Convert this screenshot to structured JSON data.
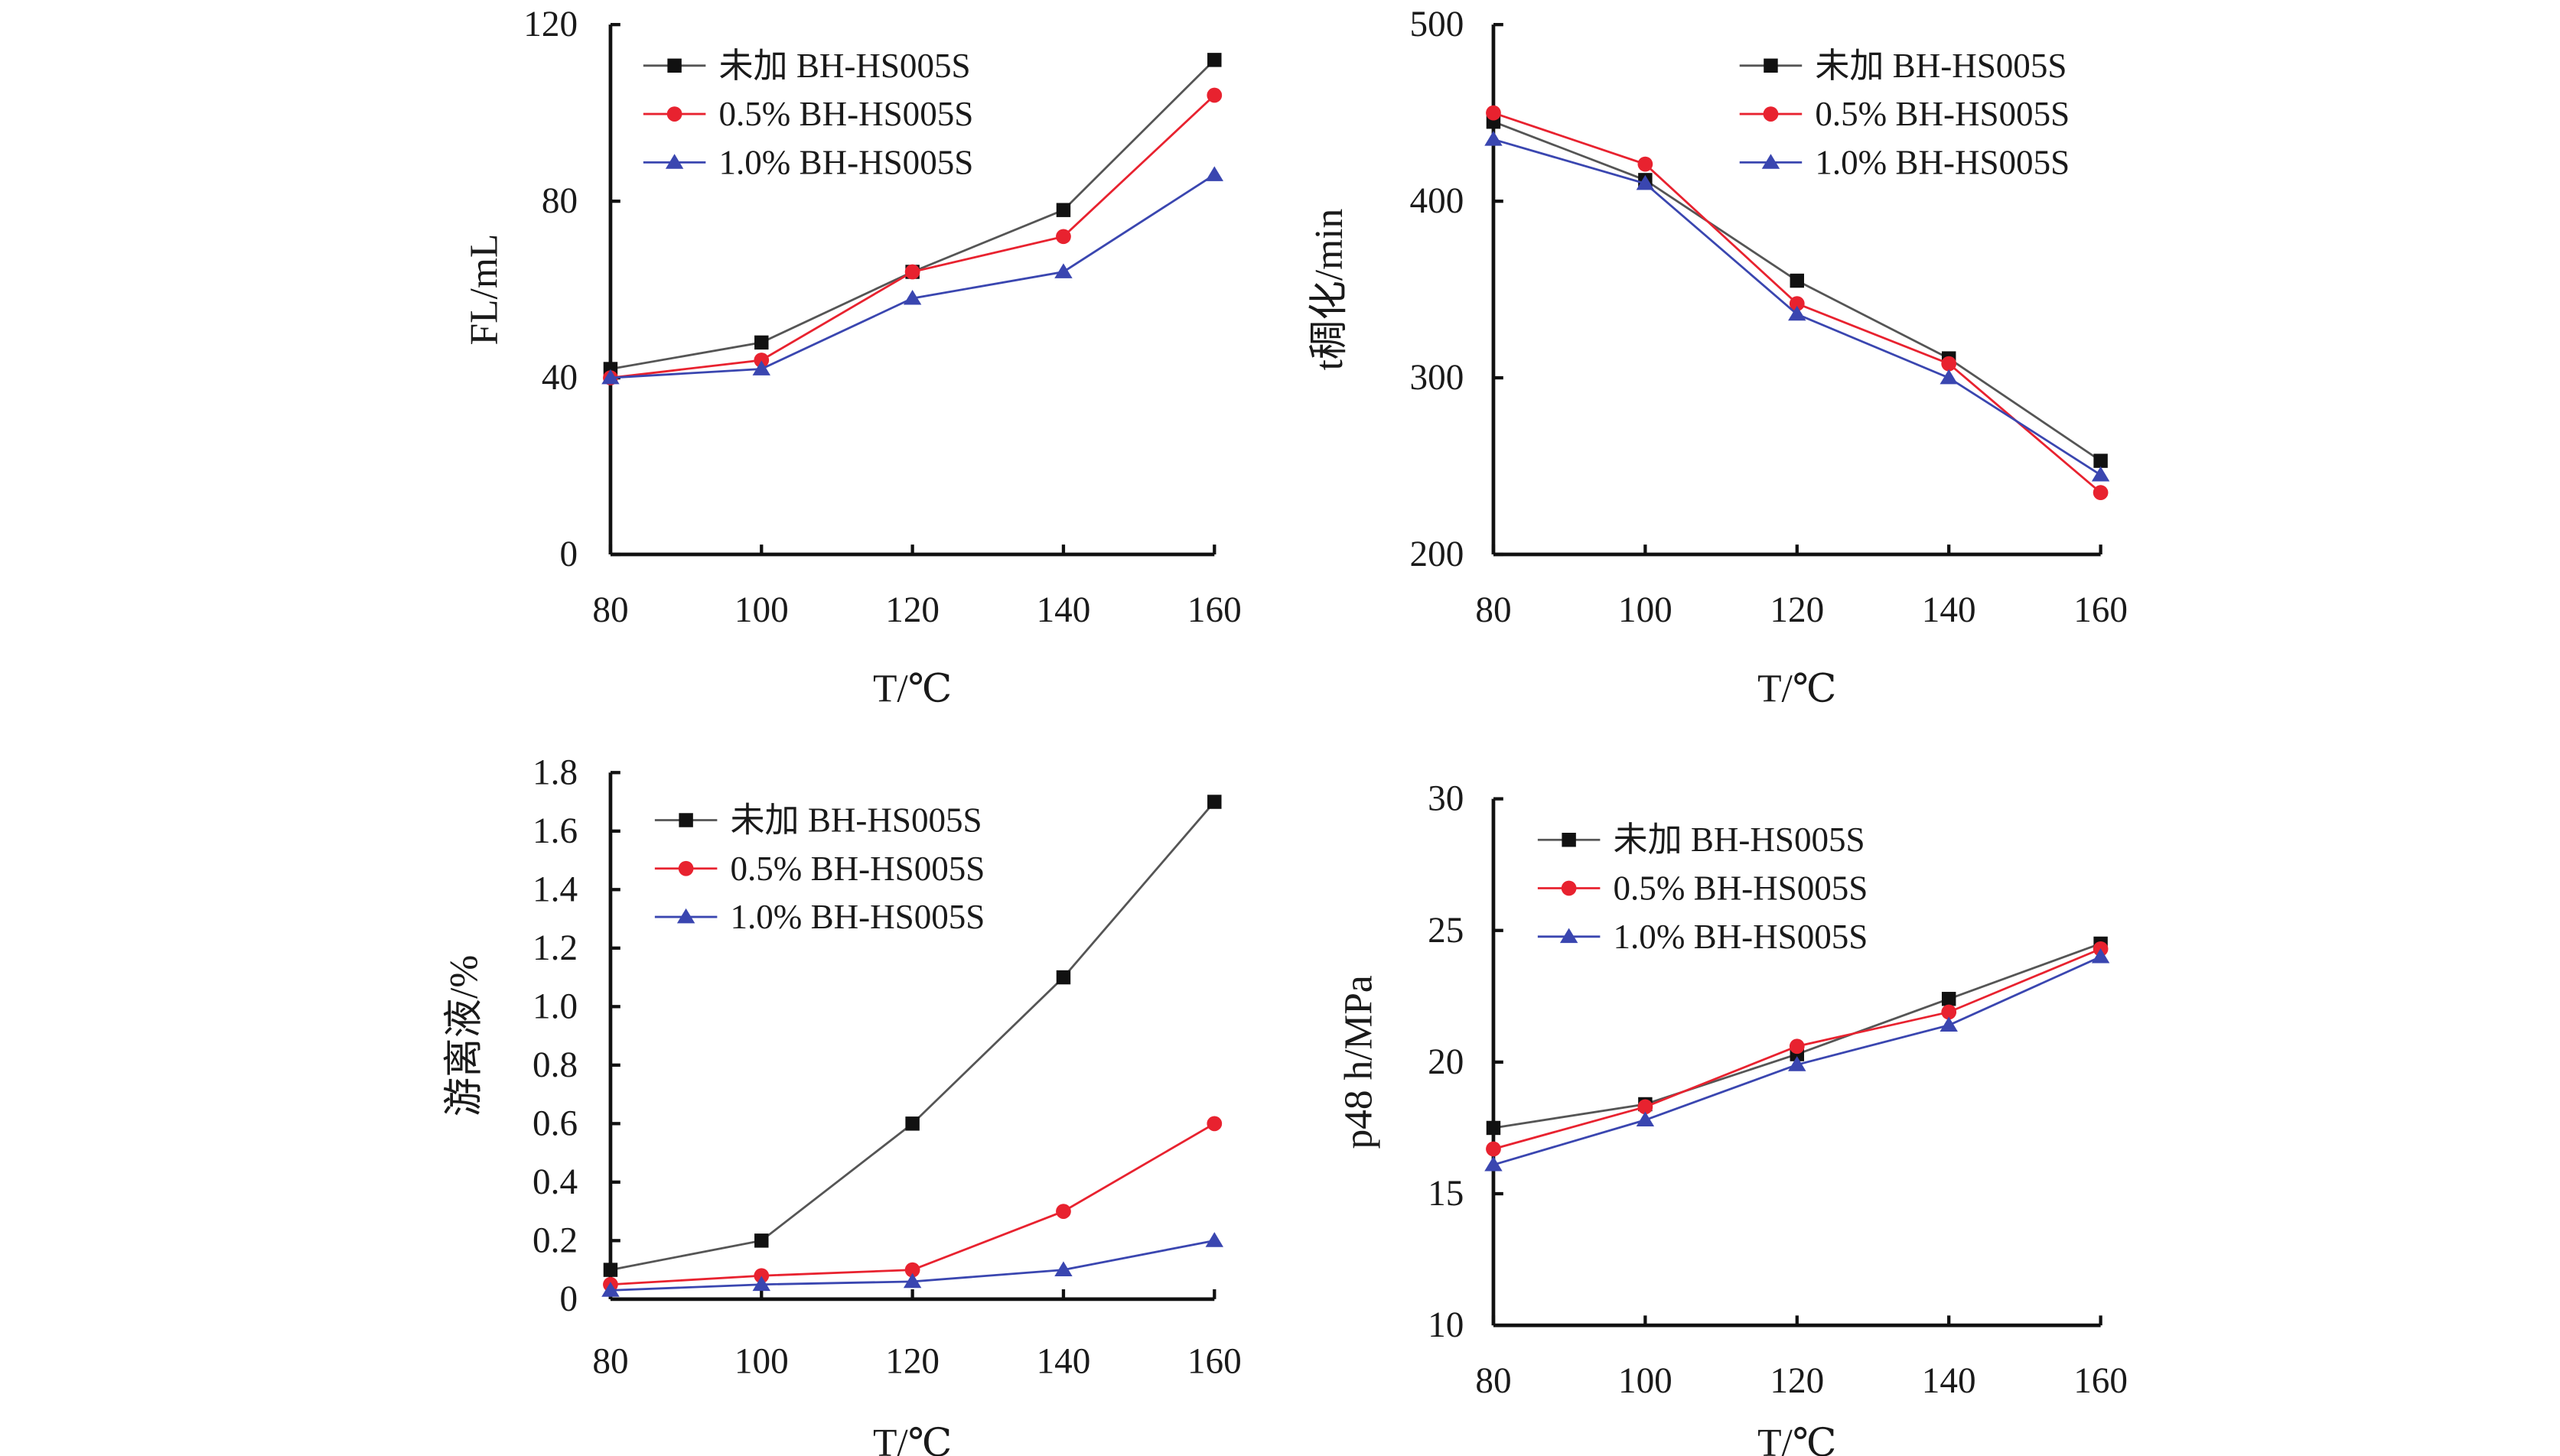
{
  "colors": {
    "series": [
      "#555555",
      "#e8222f",
      "#3a46b0"
    ],
    "markers": [
      "#111111",
      "#e8222f",
      "#3a46b0"
    ],
    "axis": "#111111"
  },
  "chart_data": [
    {
      "type": "line",
      "x": [
        80,
        100,
        120,
        140,
        160
      ],
      "xlabel": "T/℃",
      "ylabel": "FL/mL",
      "xlim": [
        80,
        160
      ],
      "ylim": [
        0,
        120
      ],
      "xticks": [
        "80",
        "100",
        "120",
        "140",
        "160"
      ],
      "yticks": [
        "0",
        "40",
        "80",
        "120"
      ],
      "grid": false,
      "legend_position": "top-left",
      "series": [
        {
          "name": "未加 BH-HS005S",
          "marker": "square",
          "values": [
            42,
            48,
            64,
            78,
            112
          ]
        },
        {
          "name": "0.5% BH-HS005S",
          "marker": "circle",
          "values": [
            40,
            44,
            64,
            72,
            104
          ]
        },
        {
          "name": "1.0% BH-HS005S",
          "marker": "triangle",
          "values": [
            40,
            42,
            58,
            64,
            86
          ]
        }
      ]
    },
    {
      "type": "line",
      "x": [
        80,
        100,
        120,
        140,
        160
      ],
      "xlabel": "T/℃",
      "ylabel": "t稠化/min",
      "xlim": [
        80,
        160
      ],
      "ylim": [
        200,
        500
      ],
      "xticks": [
        "80",
        "100",
        "120",
        "140",
        "160"
      ],
      "yticks": [
        "200",
        "300",
        "400",
        "500"
      ],
      "grid": false,
      "legend_position": "top-right",
      "series": [
        {
          "name": "未加 BH-HS005S",
          "marker": "square",
          "values": [
            445,
            412,
            355,
            311,
            253
          ]
        },
        {
          "name": "0.5% BH-HS005S",
          "marker": "circle",
          "values": [
            450,
            421,
            342,
            308,
            235
          ]
        },
        {
          "name": "1.0% BH-HS005S",
          "marker": "triangle",
          "values": [
            435,
            410,
            336,
            300,
            245
          ]
        }
      ]
    },
    {
      "type": "line",
      "x": [
        80,
        100,
        120,
        140,
        160
      ],
      "xlabel": "T/℃",
      "ylabel": "游离液/%",
      "xlim": [
        80,
        160
      ],
      "ylim": [
        0,
        1.8
      ],
      "xticks": [
        "80",
        "100",
        "120",
        "140",
        "160"
      ],
      "yticks": [
        "0",
        "0.2",
        "0.4",
        "0.6",
        "0.8",
        "1.0",
        "1.2",
        "1.4",
        "1.6",
        "1.8"
      ],
      "grid": false,
      "legend_position": "top-left",
      "series": [
        {
          "name": "未加 BH-HS005S",
          "marker": "square",
          "values": [
            0.1,
            0.2,
            0.6,
            1.1,
            1.7
          ]
        },
        {
          "name": "0.5% BH-HS005S",
          "marker": "circle",
          "values": [
            0.05,
            0.08,
            0.1,
            0.3,
            0.6
          ]
        },
        {
          "name": "1.0% BH-HS005S",
          "marker": "triangle",
          "values": [
            0.03,
            0.05,
            0.06,
            0.1,
            0.2
          ]
        }
      ]
    },
    {
      "type": "line",
      "x": [
        80,
        100,
        120,
        140,
        160
      ],
      "xlabel": "T/℃",
      "ylabel": "p48 h/MPa",
      "xlim": [
        80,
        160
      ],
      "ylim": [
        10,
        30
      ],
      "xticks": [
        "80",
        "100",
        "120",
        "140",
        "160"
      ],
      "yticks": [
        "10",
        "15",
        "20",
        "25",
        "30"
      ],
      "grid": false,
      "legend_position": "top-left",
      "series": [
        {
          "name": "未加 BH-HS005S",
          "marker": "square",
          "values": [
            17.5,
            18.4,
            20.3,
            22.4,
            24.5
          ]
        },
        {
          "name": "0.5% BH-HS005S",
          "marker": "circle",
          "values": [
            16.7,
            18.3,
            20.6,
            21.9,
            24.3
          ]
        },
        {
          "name": "1.0% BH-HS005S",
          "marker": "triangle",
          "values": [
            16.1,
            17.8,
            19.9,
            21.4,
            24.0
          ]
        }
      ]
    }
  ]
}
